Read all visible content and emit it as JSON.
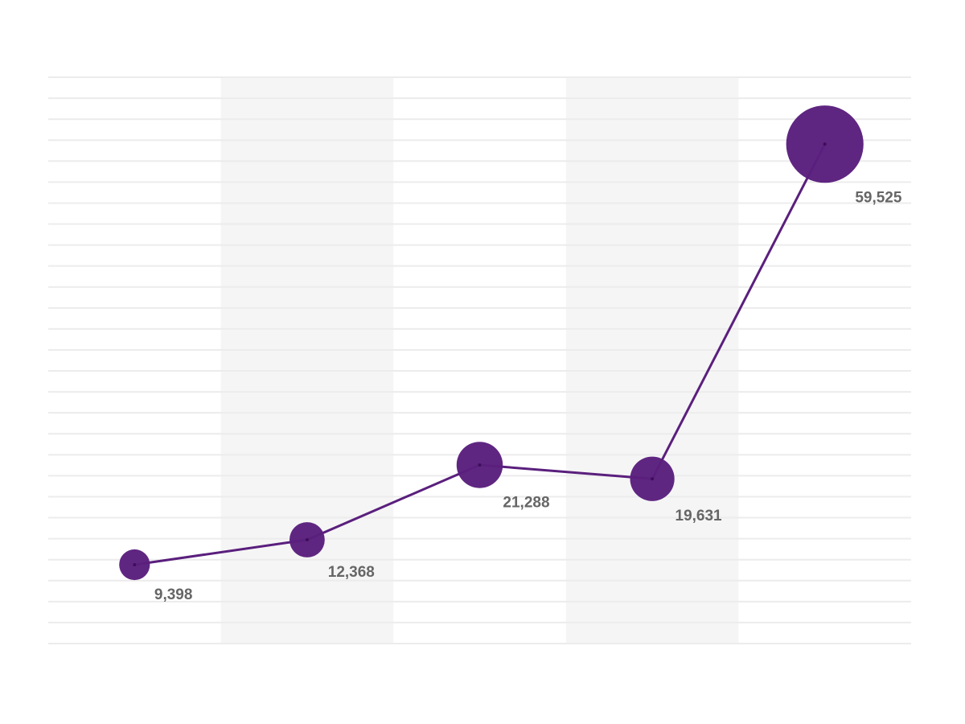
{
  "chart_data": {
    "type": "bubble-line",
    "categories": [
      null,
      null,
      null,
      null,
      null
    ],
    "values": [
      9398,
      12368,
      21288,
      19631,
      59525
    ],
    "value_labels": [
      "9,398",
      "12,368",
      "21,288",
      "19,631",
      "59,525"
    ],
    "color": "#5a1f7d",
    "ylim": [
      0,
      67500
    ],
    "yticks": [
      0,
      2500,
      5000,
      7500,
      10000,
      12500,
      15000,
      17500,
      20000,
      22500,
      25000,
      27500,
      30000,
      32500,
      35000,
      37500,
      40000,
      42500,
      45000,
      47500,
      50000,
      52500,
      55000,
      57500,
      60000,
      62500,
      65000,
      67500
    ],
    "grid": true
  }
}
